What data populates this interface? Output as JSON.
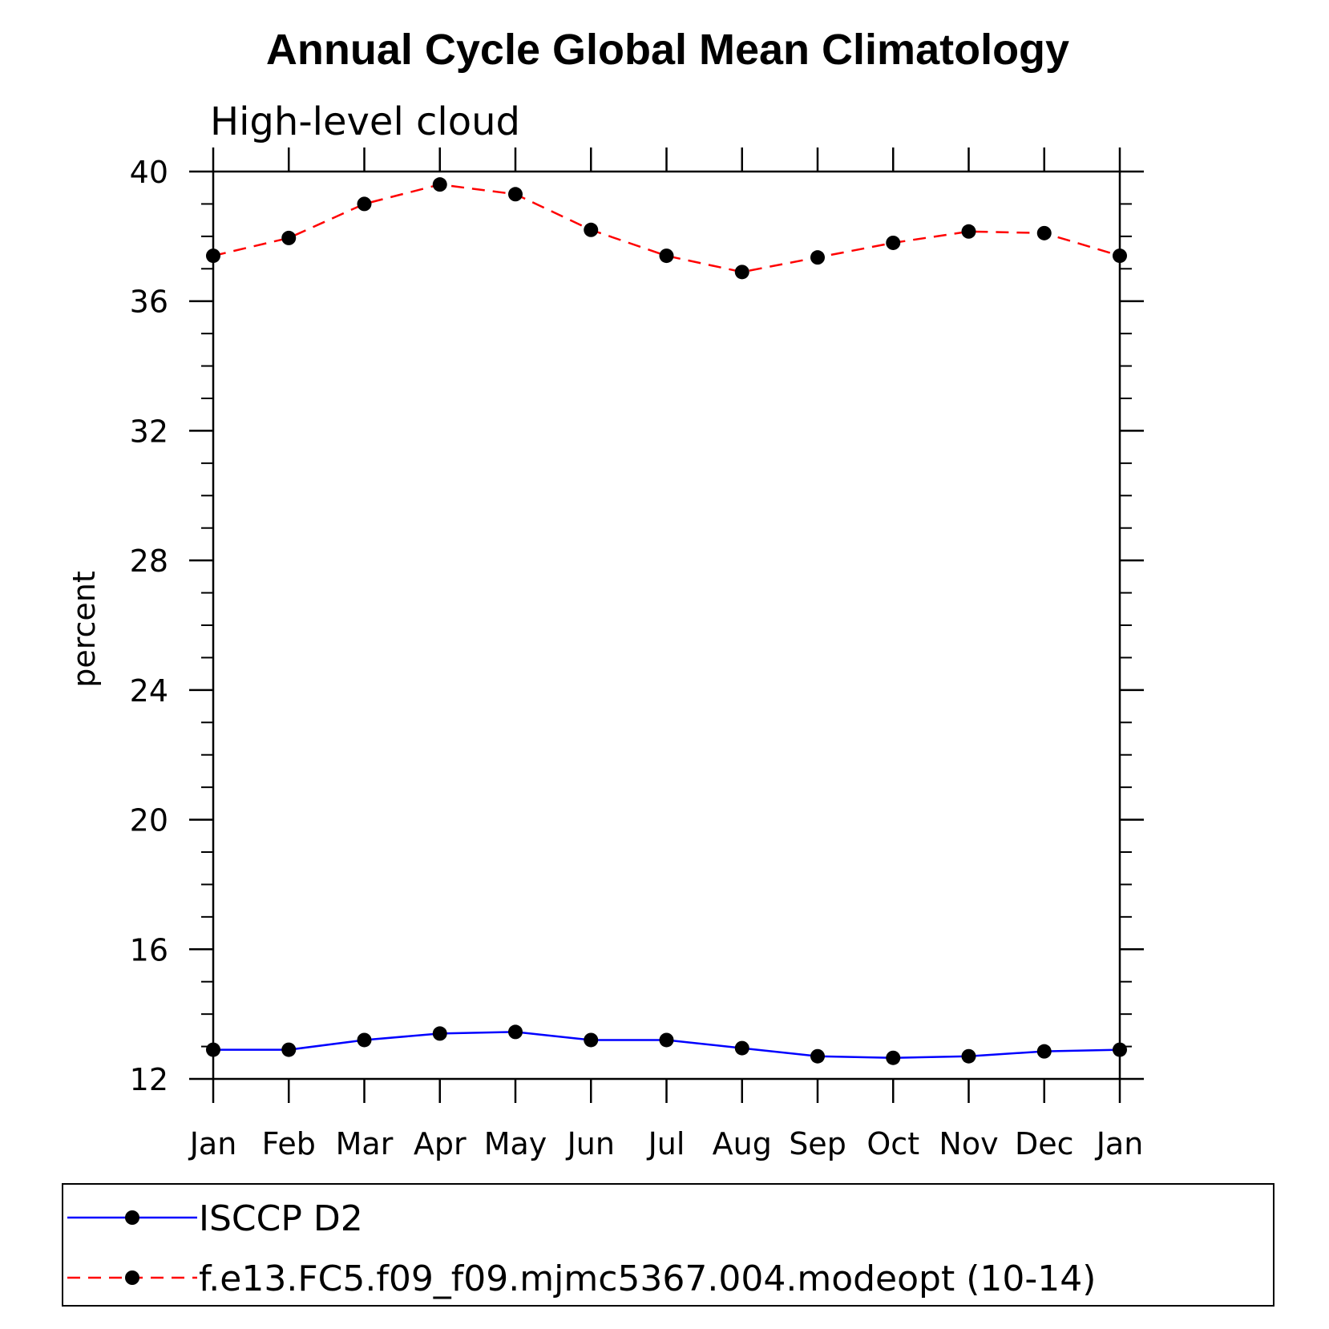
{
  "chart_data": {
    "type": "line",
    "title": "Annual Cycle Global Mean Climatology",
    "subtitle": "High-level cloud",
    "xlabel": "",
    "ylabel": "percent",
    "categories": [
      "Jan",
      "Feb",
      "Mar",
      "Apr",
      "May",
      "Jun",
      "Jul",
      "Aug",
      "Sep",
      "Oct",
      "Nov",
      "Dec",
      "Jan"
    ],
    "ylim": [
      12,
      40
    ],
    "yticks": [
      12,
      16,
      20,
      24,
      28,
      32,
      36,
      40
    ],
    "grid": false,
    "legend_position": "bottom",
    "series": [
      {
        "name": "ISCCP D2",
        "color": "#0000ff",
        "dash": "solid",
        "marker": "filled-circle",
        "values": [
          12.9,
          12.9,
          13.2,
          13.4,
          13.45,
          13.2,
          13.2,
          12.95,
          12.7,
          12.65,
          12.7,
          12.85,
          12.9
        ]
      },
      {
        "name": "f.e13.FC5.f09_f09.mjmc5367.004.modeopt (10-14)",
        "color": "#ff0000",
        "dash": "dashed",
        "marker": "filled-circle",
        "values": [
          37.4,
          37.95,
          39.0,
          39.6,
          39.3,
          38.2,
          37.4,
          36.9,
          37.35,
          37.8,
          38.15,
          38.1,
          37.4
        ]
      }
    ]
  }
}
